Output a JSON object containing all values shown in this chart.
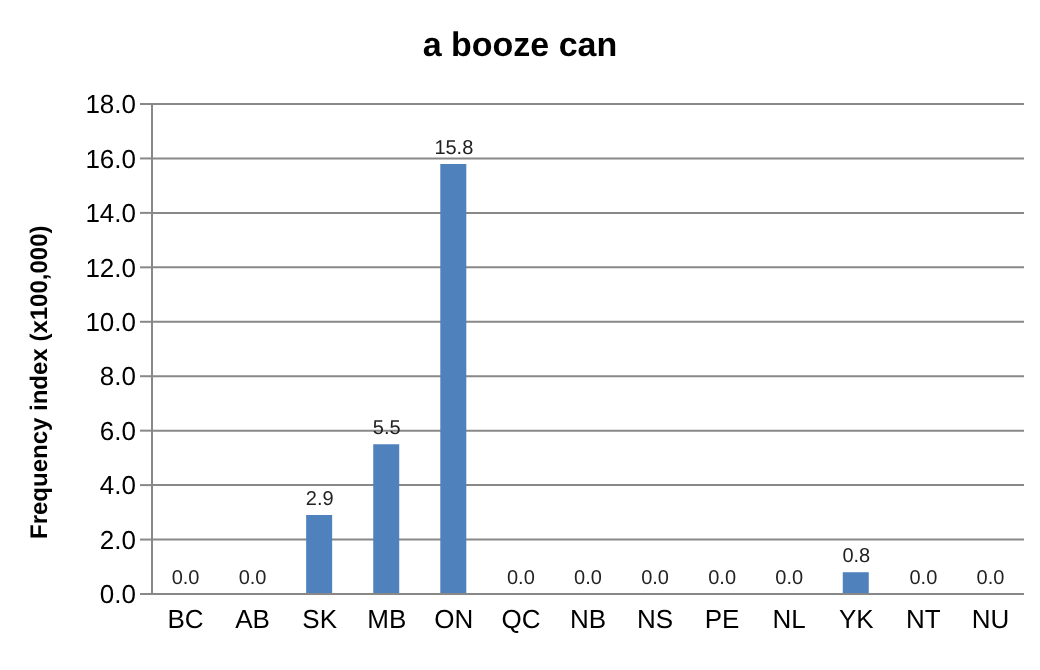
{
  "chart_data": {
    "type": "bar",
    "title": "a booze can",
    "ylabel": "Frequency index (x100,000)",
    "categories": [
      "BC",
      "AB",
      "SK",
      "MB",
      "ON",
      "QC",
      "NB",
      "NS",
      "PE",
      "NL",
      "YK",
      "NT",
      "NU"
    ],
    "values": [
      0.0,
      0.0,
      2.9,
      5.5,
      15.8,
      0.0,
      0.0,
      0.0,
      0.0,
      0.0,
      0.8,
      0.0,
      0.0
    ],
    "value_labels": [
      "0.0",
      "0.0",
      "2.9",
      "5.5",
      "15.8",
      "0.0",
      "0.0",
      "0.0",
      "0.0",
      "0.0",
      "0.8",
      "0.0",
      "0.0"
    ],
    "color": "#4f81bd",
    "ylim": [
      0,
      18
    ],
    "yticks": [
      {
        "value": 0,
        "label": "0.0"
      },
      {
        "value": 2,
        "label": "2.0"
      },
      {
        "value": 4,
        "label": "4.0"
      },
      {
        "value": 6,
        "label": "6.0"
      },
      {
        "value": 8,
        "label": "8.0"
      },
      {
        "value": 10,
        "label": "10.0"
      },
      {
        "value": 12,
        "label": "12.0"
      },
      {
        "value": 14,
        "label": "14.0"
      },
      {
        "value": 16,
        "label": "16.0"
      },
      {
        "value": 18,
        "label": "18.0"
      }
    ],
    "grid": "y"
  }
}
